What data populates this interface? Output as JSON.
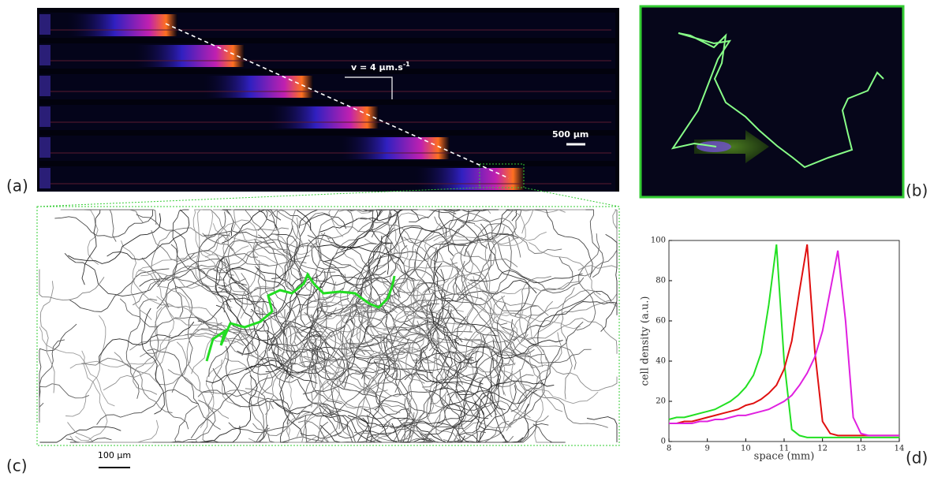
{
  "panels": {
    "a": {
      "label": "(a)",
      "velocity_label": "v = 4 μm.s",
      "velocity_exponent": "-1",
      "scale_bar": "500 μm"
    },
    "b": {
      "label": "(b)"
    },
    "c": {
      "label": "(c)",
      "scale_bar": "100 μm"
    },
    "d": {
      "label": "(d)"
    }
  },
  "chart_data": {
    "type": "line",
    "xlabel": "space (mm)",
    "ylabel": "cell density (a.u.)",
    "x": [
      8.0,
      8.2,
      8.4,
      8.6,
      8.8,
      9.0,
      9.2,
      9.4,
      9.6,
      9.8,
      10.0,
      10.2,
      10.4,
      10.6,
      10.8,
      11.0,
      11.2,
      11.4,
      11.6,
      11.8,
      12.0,
      12.2,
      12.4,
      12.6,
      12.8,
      13.0,
      13.2,
      13.4,
      13.6,
      13.8,
      14.0
    ],
    "series": [
      {
        "color": "#22e022",
        "values": [
          11,
          12,
          12,
          13,
          14,
          15,
          16,
          18,
          20,
          23,
          27,
          33,
          44,
          68,
          98,
          40,
          6,
          3,
          2,
          2,
          2,
          2,
          2,
          2,
          2,
          2,
          2,
          2,
          2,
          2,
          2
        ]
      },
      {
        "color": "#e01010",
        "values": [
          9,
          9,
          10,
          10,
          11,
          12,
          13,
          14,
          15,
          16,
          18,
          19,
          21,
          24,
          28,
          36,
          50,
          75,
          98,
          45,
          10,
          4,
          3,
          3,
          3,
          3,
          3,
          3,
          3,
          3,
          3
        ]
      },
      {
        "color": "#e020e0",
        "values": [
          9,
          9,
          9,
          9,
          10,
          10,
          11,
          11,
          12,
          13,
          13,
          14,
          15,
          16,
          18,
          20,
          23,
          28,
          34,
          42,
          55,
          75,
          95,
          60,
          12,
          4,
          3,
          3,
          3,
          3,
          3
        ]
      }
    ],
    "xlim": [
      8,
      14
    ],
    "xticks": [
      8,
      9,
      10,
      11,
      12,
      13,
      14
    ],
    "ylim": [
      0,
      100
    ],
    "yticks": [
      0,
      20,
      40,
      60,
      80,
      100
    ]
  }
}
